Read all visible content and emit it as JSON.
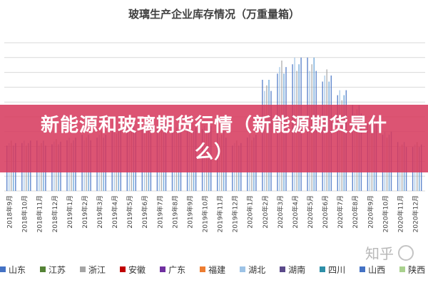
{
  "chart_data": {
    "type": "bar",
    "title": "玻璃生产企业库存情况（万重量箱）",
    "grid": true,
    "categories": [
      "2018年9月",
      "2018年10月",
      "2018年11月",
      "2018年12月",
      "2019年1月",
      "2019年2月",
      "2019年3月",
      "2019年4月",
      "2019年5月",
      "2019年6月",
      "2019年7月",
      "2019年8月",
      "2019年9月",
      "2019年10月",
      "2019年11月",
      "2019年12月",
      "2020年1月",
      "2020年2月",
      "2020年3月",
      "2020年4月",
      "2020年5月",
      "2020年6月",
      "2020年7月",
      "2020年8月",
      "2020年9月",
      "2020年10月",
      "2020年11月",
      "2020年12月"
    ],
    "series": [
      {
        "name": "山东",
        "color": "#4472c4"
      },
      {
        "name": "江苏",
        "color": "#548235"
      },
      {
        "name": "浙江",
        "color": "#a5a5a5"
      },
      {
        "name": "安徽",
        "color": "#c00000"
      },
      {
        "name": "广东",
        "color": "#7030a0"
      },
      {
        "name": "福建",
        "color": "#ed7d31"
      },
      {
        "name": "湖北",
        "color": "#9dc3e6"
      },
      {
        "name": "湖南",
        "color": "#5b4a8a"
      },
      {
        "name": "四川",
        "color": "#2e8fa8"
      },
      {
        "name": "山西",
        "color": "#4472c4"
      },
      {
        "name": "陕西",
        "color": "#a9d18e"
      }
    ],
    "total_values": [
      0.34,
      0.34,
      0.34,
      0.35,
      0.36,
      0.38,
      0.4,
      0.43,
      0.45,
      0.46,
      0.46,
      0.45,
      0.45,
      0.44,
      0.4,
      0.34,
      0.38,
      0.75,
      0.88,
      0.9,
      0.9,
      0.82,
      0.68,
      0.58,
      0.5,
      0.4,
      0.33,
      0.33
    ]
  },
  "overlay": {
    "banner_text": "新能源和玻璃期货行情（新能源期货是什么）",
    "watermark_text": "知乎"
  }
}
